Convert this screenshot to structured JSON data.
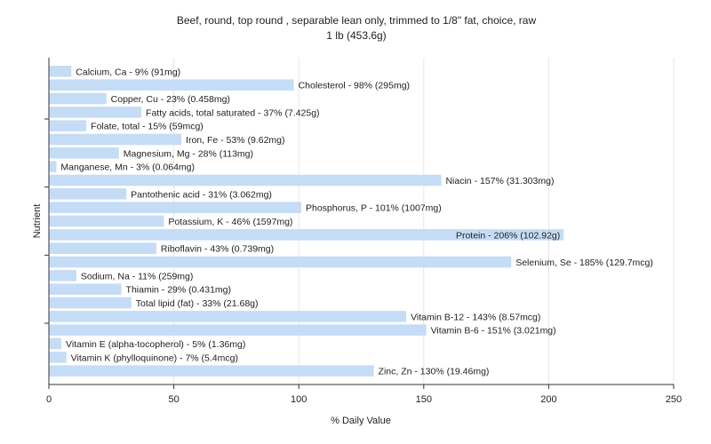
{
  "chart_data": {
    "type": "bar",
    "orientation": "horizontal",
    "title": "Beef, round, top round , separable lean only, trimmed to 1/8\" fat, choice, raw",
    "subtitle": "1 lb (453.6g)",
    "xlabel": "% Daily Value",
    "ylabel": "Nutrient",
    "xlim": [
      0,
      250
    ],
    "xticks": [
      "0",
      "50",
      "100",
      "150",
      "200",
      "250"
    ],
    "grid": true,
    "bar_color": "#c5dcf6",
    "categories": [
      "Calcium, Ca",
      "Cholesterol",
      "Copper, Cu",
      "Fatty acids, total saturated",
      "Folate, total",
      "Iron, Fe",
      "Magnesium, Mg",
      "Manganese, Mn",
      "Niacin",
      "Pantothenic acid",
      "Phosphorus, P",
      "Potassium, K",
      "Protein",
      "Riboflavin",
      "Selenium, Se",
      "Sodium, Na",
      "Thiamin",
      "Total lipid (fat)",
      "Vitamin B-12",
      "Vitamin B-6",
      "Vitamin E (alpha-tocopherol)",
      "Vitamin K (phylloquinone)",
      "Zinc, Zn"
    ],
    "values": [
      9,
      98,
      23,
      37,
      15,
      53,
      28,
      3,
      157,
      31,
      101,
      46,
      206,
      43,
      185,
      11,
      29,
      33,
      143,
      151,
      5,
      7,
      130
    ],
    "labels": [
      "Calcium, Ca - 9% (91mg)",
      "Cholesterol - 98% (295mg)",
      "Copper, Cu - 23% (0.458mg)",
      "Fatty acids, total saturated - 37% (7.425g)",
      "Folate, total - 15% (59mcg)",
      "Iron, Fe - 53% (9.62mg)",
      "Magnesium, Mg - 28% (113mg)",
      "Manganese, Mn - 3% (0.064mg)",
      "Niacin - 157% (31.303mg)",
      "Pantothenic acid - 31% (3.062mg)",
      "Phosphorus, P - 101% (1007mg)",
      "Potassium, K - 46% (1597mg)",
      "Protein - 206% (102.92g)",
      "Riboflavin - 43% (0.739mg)",
      "Selenium, Se - 185% (129.7mcg)",
      "Sodium, Na - 11% (259mg)",
      "Thiamin - 29% (0.431mg)",
      "Total lipid (fat) - 33% (21.68g)",
      "Vitamin B-12 - 143% (8.57mcg)",
      "Vitamin B-6 - 151% (3.021mg)",
      "Vitamin E (alpha-tocopherol) - 5% (1.36mg)",
      "Vitamin K (phylloquinone) - 7% (5.4mcg)",
      "Zinc, Zn - 130% (19.46mg)"
    ]
  }
}
